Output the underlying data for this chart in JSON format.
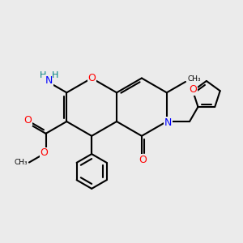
{
  "bg_color": "#ebebeb",
  "bond_color": "#000000",
  "bond_width": 1.5,
  "atom_colors": {
    "O": "#ff0000",
    "N": "#0000ff",
    "H": "#008080",
    "C": "#000000"
  },
  "font_size": 9.0
}
